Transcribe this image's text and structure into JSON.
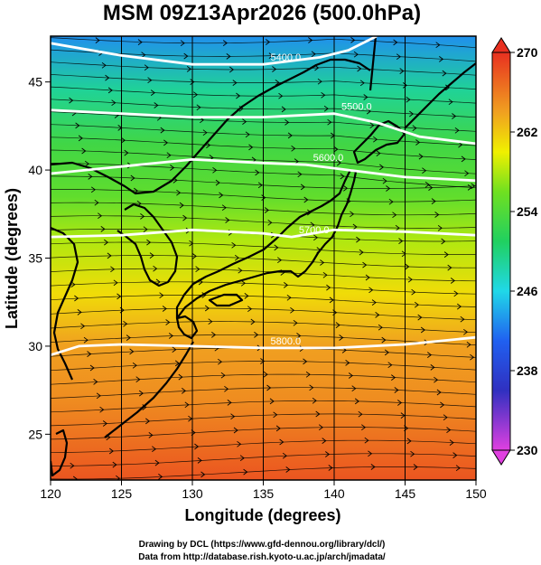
{
  "chart_data": {
    "type": "heatmap",
    "title": "MSM 09Z13Apr2026 (500.0hPa)",
    "xlabel": "Longitude (degrees)",
    "ylabel": "Latitude  (degrees)",
    "xlim": [
      120,
      150
    ],
    "ylim": [
      22.4,
      47.6
    ],
    "x_ticks": [
      "120",
      "125",
      "130",
      "135",
      "140",
      "145",
      "150"
    ],
    "y_ticks": [
      "25",
      "30",
      "35",
      "40",
      "45"
    ],
    "gridlines_x": [
      125,
      130,
      135,
      140,
      145
    ],
    "colorbar": {
      "min": 230,
      "max": 270,
      "ticks": [
        "270",
        "262",
        "254",
        "246",
        "238",
        "230"
      ],
      "colors": {
        "c230": "#e040e0",
        "c236": "#3030c0",
        "c241": "#2060f0",
        "c246": "#20d8e8",
        "c251": "#20d060",
        "c256": "#70e020",
        "c260": "#f0f000",
        "c264": "#f0a020",
        "c270": "#e83020"
      }
    },
    "temperature_bands": [
      {
        "lat": 47.6,
        "value": 243
      },
      {
        "lat": 44.5,
        "value": 249
      },
      {
        "lat": 41.5,
        "value": 253
      },
      {
        "lat": 38.5,
        "value": 255
      },
      {
        "lat": 36.0,
        "value": 258
      },
      {
        "lat": 33.0,
        "value": 261
      },
      {
        "lat": 30.0,
        "value": 264
      },
      {
        "lat": 27.0,
        "value": 265
      },
      {
        "lat": 24.0,
        "value": 267
      },
      {
        "lat": 22.4,
        "value": 268
      }
    ],
    "contours": [
      {
        "label": "5400.0",
        "points": [
          [
            120,
            47.2
          ],
          [
            125,
            46.5
          ],
          [
            130,
            46.0
          ],
          [
            135,
            46.0
          ],
          [
            139,
            46.4
          ],
          [
            141,
            46.8
          ],
          [
            143,
            47.6
          ]
        ]
      },
      {
        "label": "5500.0",
        "points": [
          [
            120,
            43.4
          ],
          [
            125,
            43.2
          ],
          [
            130,
            43.0
          ],
          [
            135,
            43.0
          ],
          [
            140,
            43.2
          ],
          [
            143,
            42.7
          ],
          [
            146,
            41.9
          ],
          [
            150,
            41.5
          ]
        ]
      },
      {
        "label": "5600.0",
        "points": [
          [
            120,
            39.8
          ],
          [
            125,
            40.2
          ],
          [
            130,
            40.6
          ],
          [
            135,
            40.4
          ],
          [
            138,
            40.3
          ],
          [
            141,
            40.0
          ],
          [
            145,
            39.6
          ],
          [
            150,
            39.4
          ]
        ]
      },
      {
        "label": "5700.0",
        "points": [
          [
            120,
            36.2
          ],
          [
            125,
            36.3
          ],
          [
            130,
            36.6
          ],
          [
            135,
            36.4
          ],
          [
            137,
            36.2
          ],
          [
            140,
            36.6
          ],
          [
            145,
            36.5
          ],
          [
            150,
            36.3
          ]
        ]
      },
      {
        "label": "5800.0",
        "points": [
          [
            120,
            29.5
          ],
          [
            122,
            30.0
          ],
          [
            125,
            30.1
          ],
          [
            130,
            30.0
          ],
          [
            135,
            29.9
          ],
          [
            140,
            29.9
          ],
          [
            145,
            30.1
          ],
          [
            150,
            30.5
          ]
        ]
      }
    ],
    "wind": {
      "direction": "westerly",
      "streamlines": true
    },
    "coastlines": true
  },
  "credits": {
    "line1": "Drawing by DCL (https://www.gfd-dennou.org/library/dcl/)",
    "line2": "Data from http://database.rish.kyoto-u.ac.jp/arch/jmadata/"
  }
}
